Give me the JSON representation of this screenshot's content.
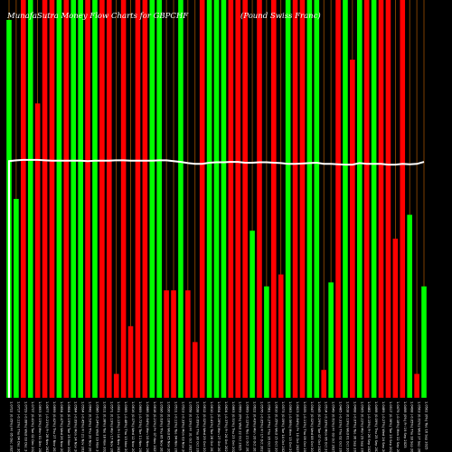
{
  "chart_data": {
    "type": "bar",
    "title": "MunafaSutra Money Flow Charts for GBPCHF",
    "subtitle": "(Pound Swiss Franc)",
    "xlabel": "",
    "ylabel": "",
    "ylim": [
      0,
      100
    ],
    "grid": false,
    "categories": [
      "Fri 05 Dec 2025",
      "Thu 04 Dec 2025",
      "Wed 03 Dec 2025",
      "Tue 02 Dec 2025",
      "Mon 01 Dec 2025",
      "Fri 28 Nov 2025",
      "Thu 27 Nov 2025",
      "Wed 26 Nov 2025",
      "Tue 25 Nov 2025",
      "Mon 24 Nov 2025",
      "Fri 21 Nov 2025",
      "Thu 20 Nov 2025",
      "Wed 19 Nov 2025",
      "Tue 18 Nov 2025",
      "Mon 17 Nov 2025",
      "Fri 14 Nov 2025",
      "Thu 13 Nov 2025",
      "Wed 12 Nov 2025",
      "Tue 11 Nov 2025",
      "Mon 10 Nov 2025",
      "Fri 07 Nov 2025",
      "Thu 06 Nov 2025",
      "Wed 05 Nov 2025",
      "Tue 04 Nov 2025",
      "Mon 03 Nov 2025",
      "Fri 31 Oct 2025",
      "Thu 30 Oct 2025",
      "Wed 29 Oct 2025",
      "Tue 28 Oct 2025",
      "Mon 27 Oct 2025",
      "Fri 24 Oct 2025",
      "Thu 23 Oct 2025",
      "Wed 22 Oct 2025",
      "Tue 21 Oct 2025",
      "Mon 20 Oct 2025",
      "Fri 17 Oct 2025",
      "Thu 16 Oct 2025",
      "Wed 15 Oct 2025",
      "Tue 14 Oct 2025",
      "Mon 13 Oct 2025",
      "Fri 10 Oct 2025",
      "Thu 09 Oct 2025",
      "Wed 08 Oct 2025",
      "Tue 07 Oct 2025",
      "Mon 06 Oct 2025",
      "Fri 03 Oct 2025",
      "Thu 02 Oct 2025",
      "Wed 01 Oct 2025",
      "Tue 30 Sep 2025",
      "Mon 29 Sep 2025",
      "Fri 26 Sep 2025",
      "Thu 25 Sep 2025",
      "Wed 24 Sep 2025",
      "Tue 23 Sep 2025",
      "Mon 22 Sep 2025",
      "Fri 19 Sep 2025",
      "Thu 18 Sep 2025",
      "Wed 17 Sep 2025",
      "Tue 16 Sep 2025"
    ],
    "tick_labels": [
      "1.0722 (0.05%)",
      "1.0717 (-0.11%)",
      "1.0729 (-0.08%)",
      "1.0737 (0.41%)",
      "1.0693 (0.15%)",
      "1.0677 (-0.21%)",
      "1.0699 (0.42%)",
      "1.0654 (0.47%)",
      "1.0604 (0.19%)",
      "1.0584 (-0.09%)",
      "1.0594 (-0.45%)",
      "1.0642 (0.53%)",
      "1.0586 (-0.24%)",
      "1.0611 (0.38%)",
      "1.0571 (0.19%)",
      "1.0551 (-0.13%)",
      "1.0565 (-0.48%)",
      "1.0616 (0.07%)",
      "1.0609 (-0.72%)",
      "1.0686 (0.64%)",
      "1.0618 (0.21%)",
      "1.0596 (0.63%)",
      "1.0530 (0.18%)",
      "1.0511 (-0.11%)",
      "1.0523 (-0.33%)",
      "1.0558 (0.19%)",
      "1.0538 (-0.69%)",
      "1.0612 (0.02%)",
      "1.0610 (-0.41%)",
      "1.0654 (0.28%)",
      "1.0624 (-0.37%)",
      "1.0663 (0.51%)",
      "1.0609 (0%)",
      "1.0609 (-0.12%)",
      "1.0622 (0.43%)",
      "1.0576 (-0.05%)",
      "1.0581 (-0.27%)",
      "1.0610 (0.35%)",
      "1.0573 (0.09%)",
      "1.0563 (-0.56%)",
      "1.0623 (0.84%)",
      "1.0535 (-0.11%)",
      "1.0547 (0.02%)",
      "1.0545 (0.29%)",
      "1.0514 (-0.33%)",
      "1.0549 (0.61%)",
      "1.0485 (-0.31%)",
      "1.0518 (0.19%)",
      "1.0498 (-0.07%)",
      "1.0505 (0.22%)",
      "1.0482 (-0.15%)",
      "1.0498 (0.09%)",
      "1.0489 (-0.27%)",
      "1.0517 (0.36%)",
      "1.0479 (-0.18%)",
      "1.0498 (0%)",
      "1.0498 (-0.05%)",
      "1.0503 (0.01%)",
      "1.0502 (0%)"
    ],
    "series": [
      {
        "type": "bar",
        "colors": [
          "green",
          "green",
          "red",
          "green",
          "red",
          "red",
          "red",
          "green",
          "red",
          "green",
          "green",
          "red",
          "green",
          "red",
          "red",
          "red",
          "red",
          "red",
          "red",
          "red",
          "green",
          "green",
          "red",
          "red",
          "green",
          "red",
          "red",
          "red",
          "green",
          "green",
          "green",
          "red",
          "red",
          "red",
          "green",
          "red",
          "green",
          "red",
          "red",
          "green",
          "red",
          "red",
          "green",
          "green",
          "red",
          "green",
          "red",
          "green",
          "red",
          "green",
          "red",
          "green",
          "red",
          "red",
          "red",
          "red",
          "green",
          "red",
          "green"
        ],
        "values": [
          95,
          50,
          100,
          100,
          74,
          100,
          100,
          100,
          100,
          100,
          100,
          100,
          100,
          100,
          100,
          6,
          100,
          18,
          100,
          100,
          100,
          100,
          27,
          27,
          100,
          27,
          14,
          100,
          100,
          100,
          100,
          100,
          100,
          100,
          42,
          100,
          28,
          100,
          31,
          100,
          100,
          100,
          100,
          100,
          7,
          29,
          100,
          100,
          85,
          100,
          100,
          100,
          100,
          100,
          40,
          100,
          46,
          6,
          28
        ]
      },
      {
        "type": "line",
        "color": "#ffffff",
        "values": [
          59.5,
          59.7,
          59.8,
          59.8,
          59.8,
          59.7,
          59.6,
          59.6,
          59.6,
          59.6,
          59.6,
          59.5,
          59.6,
          59.6,
          59.6,
          59.7,
          59.7,
          59.6,
          59.6,
          59.6,
          59.6,
          59.7,
          59.7,
          59.5,
          59.3,
          59.0,
          58.8,
          58.8,
          59.1,
          59.2,
          59.2,
          59.3,
          59.3,
          59.1,
          59.1,
          59.2,
          59.2,
          59.1,
          59.0,
          58.8,
          58.8,
          58.9,
          59.0,
          59.1,
          58.8,
          58.8,
          58.7,
          58.6,
          58.6,
          59.0,
          58.8,
          58.8,
          58.8,
          58.6,
          58.6,
          58.8,
          58.7,
          58.8,
          59.3
        ]
      }
    ],
    "bar_colors": {
      "green": "#00ff00",
      "red": "#ff0000"
    },
    "separator_color": "#b35900"
  }
}
